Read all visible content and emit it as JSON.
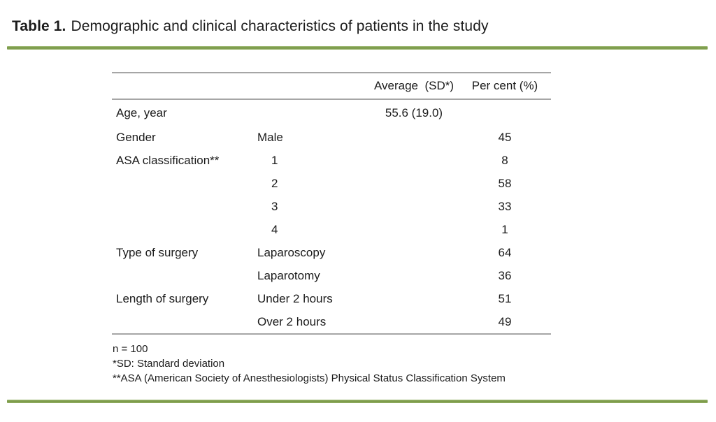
{
  "title": {
    "label": "Table 1.",
    "caption": "Demographic and clinical characteristics of patients in the study"
  },
  "table": {
    "col_headers": {
      "average": "Average  (SD*)",
      "percent": "Per cent (%)"
    },
    "rows": [
      {
        "category": "Age, year",
        "sub": "",
        "average": "55.6 (19.0)",
        "percent": ""
      },
      {
        "category": "Gender",
        "sub": "Male",
        "average": "",
        "percent": "45"
      },
      {
        "category": "ASA classification**",
        "sub": "1",
        "average": "",
        "percent": "8"
      },
      {
        "category": "",
        "sub": "2",
        "average": "",
        "percent": "58"
      },
      {
        "category": "",
        "sub": "3",
        "average": "",
        "percent": "33"
      },
      {
        "category": "",
        "sub": "4",
        "average": "",
        "percent": "1"
      },
      {
        "category": "Type of surgery",
        "sub": "Laparoscopy",
        "average": "",
        "percent": "64"
      },
      {
        "category": "",
        "sub": "Laparotomy",
        "average": "",
        "percent": "36"
      },
      {
        "category": "Length of surgery",
        "sub": "Under 2 hours",
        "average": "",
        "percent": "51"
      },
      {
        "category": "",
        "sub": "Over 2 hours",
        "average": "",
        "percent": "49"
      }
    ]
  },
  "footnotes": {
    "sample_size": "n = 100",
    "sd_note": "*SD: Standard deviation",
    "asa_note": "**ASA (American Society of Anesthesiologists) Physical Status Classification System"
  },
  "colors": {
    "accent_green": "#7E9C4C",
    "rule_gray": "#A6A6A6"
  }
}
